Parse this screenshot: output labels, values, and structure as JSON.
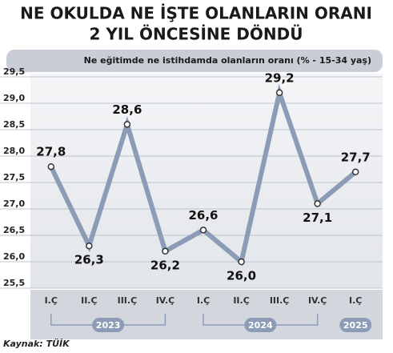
{
  "chart_data": {
    "type": "line",
    "title": [
      "NE OKULDA NE İŞTE OLANLARIN ORANI",
      "2 YIL ÖNCESİNE DÖNDÜ"
    ],
    "subtitle": "Ne eğitimde ne istihdamda olanların oranı (% - 15-34 yaş)",
    "categories": [
      "I.Ç",
      "II.Ç",
      "III.Ç",
      "IV.Ç",
      "I.Ç",
      "II.Ç",
      "III.Ç",
      "IV.Ç",
      "I.Ç"
    ],
    "years": [
      "2023",
      "2024",
      "2025"
    ],
    "values": [
      27.8,
      26.3,
      28.6,
      26.2,
      26.6,
      26.0,
      29.2,
      27.1,
      27.7
    ],
    "value_labels": [
      "27,8",
      "26,3",
      "28,6",
      "26,2",
      "26,6",
      "26,0",
      "29,2",
      "27,1",
      "27,7"
    ],
    "color": "#8d9cb6",
    "ylim": [
      25.5,
      29.5
    ],
    "yticks": [
      {
        "value": 25.5,
        "label": "25,5"
      },
      {
        "value": 26.0,
        "label": "26,0"
      },
      {
        "value": 26.5,
        "label": "26,5"
      },
      {
        "value": 27.0,
        "label": "27,0"
      },
      {
        "value": 27.5,
        "label": "27,5"
      },
      {
        "value": 28.0,
        "label": "28,0"
      },
      {
        "value": 28.5,
        "label": "28,5"
      },
      {
        "value": 29.0,
        "label": "29,0"
      },
      {
        "value": 29.5,
        "label": "29,5"
      }
    ],
    "grid": true,
    "source": "Kaynak: TÜİK"
  }
}
